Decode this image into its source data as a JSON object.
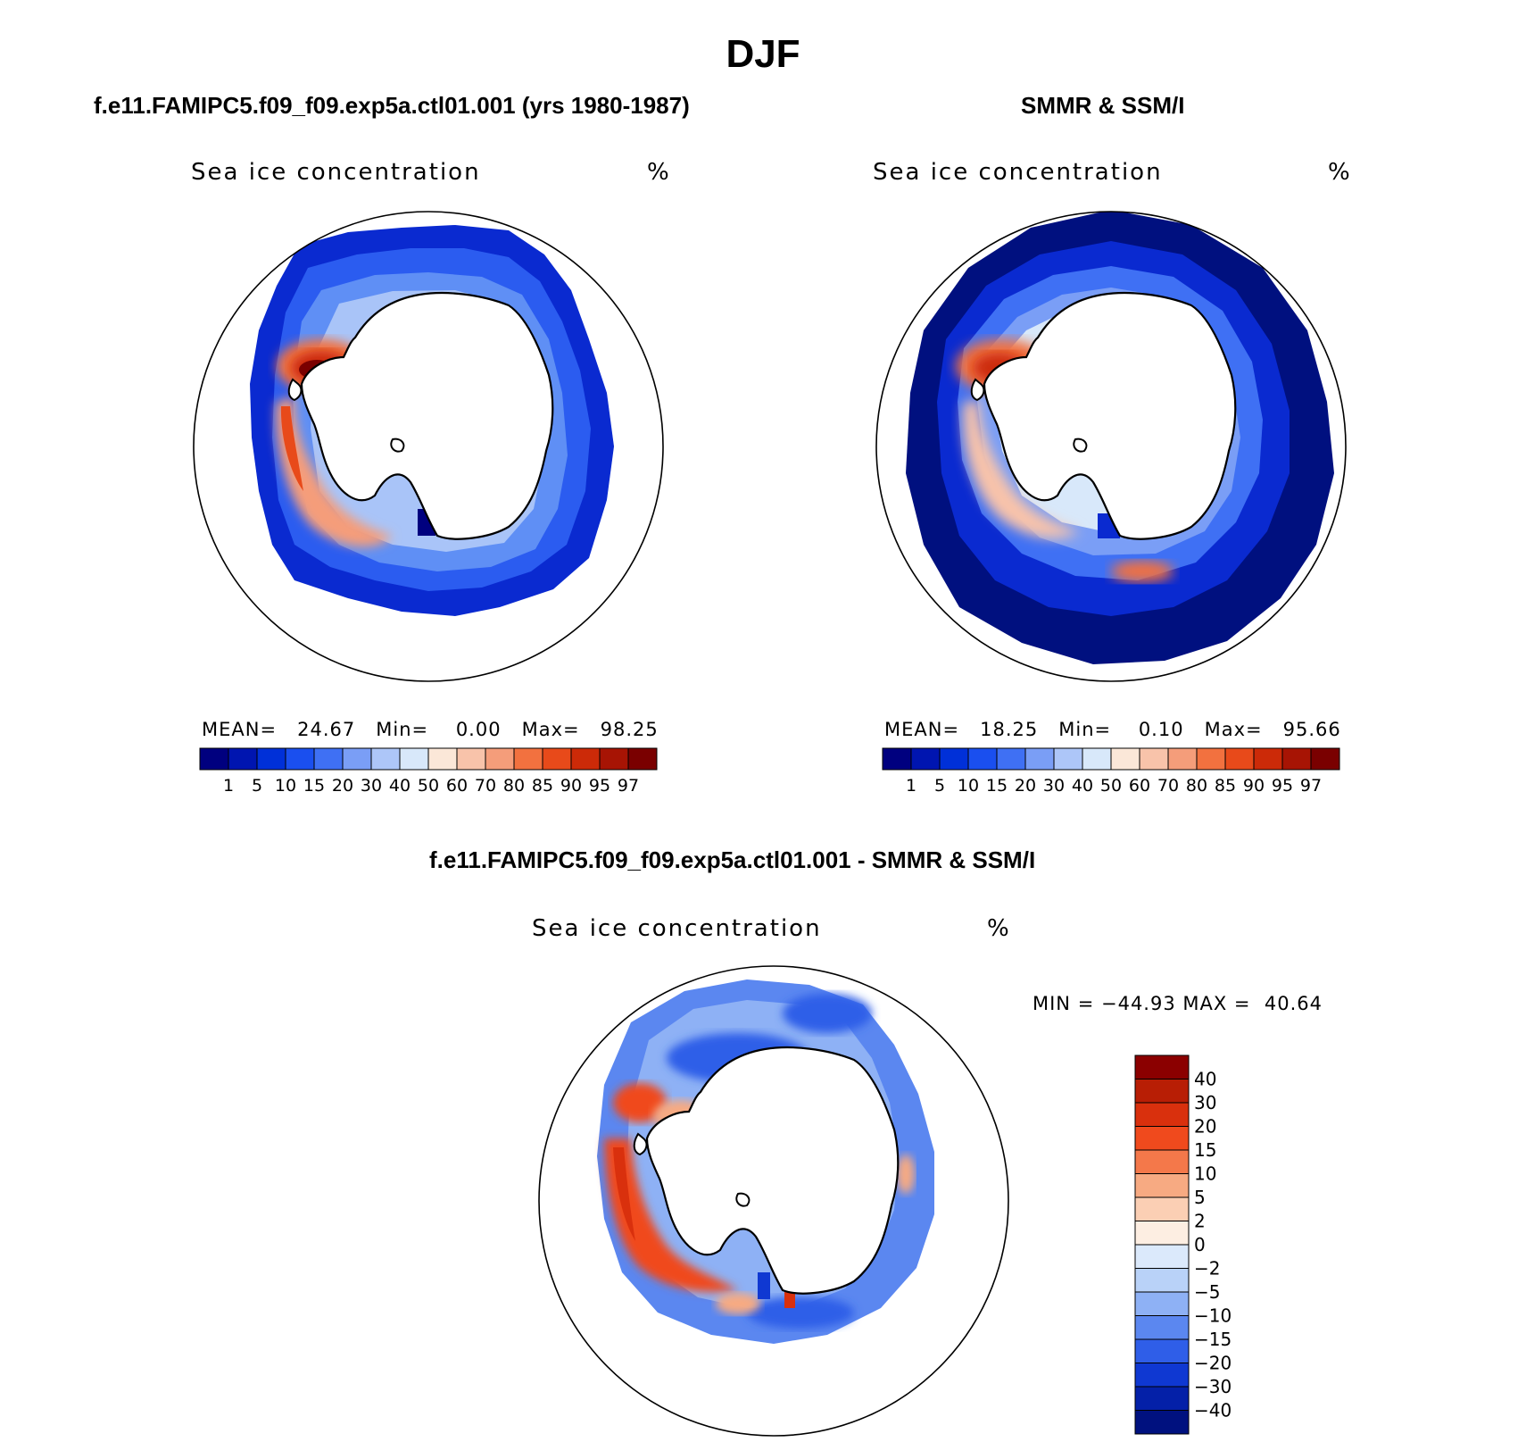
{
  "main_title": "DJF",
  "panels": {
    "model": {
      "title": "f.e11.FAMIPC5.f09_f09.exp5a.ctl01.001 (yrs 1980-1987)",
      "variable": "Sea ice concentration",
      "units": "%",
      "mean_label": "MEAN=",
      "mean": "24.67",
      "min_label": "Min=",
      "min": "0.00",
      "max_label": "Max=",
      "max": "98.25"
    },
    "obs": {
      "title": "SMMR & SSM/I",
      "variable": "Sea ice concentration",
      "units": "%",
      "mean_label": "MEAN=",
      "mean": "18.25",
      "min_label": "Min=",
      "min": "0.10",
      "max_label": "Max=",
      "max": "95.66"
    },
    "diff": {
      "title": "f.e11.FAMIPC5.f09_f09.exp5a.ctl01.001 - SMMR & SSM/I",
      "variable": "Sea ice concentration",
      "units": "%",
      "min_label": "MIN =",
      "min": "−44.93",
      "max_label": "MAX =",
      "max": "40.64"
    }
  },
  "colorbars": {
    "absolute": {
      "levels": [
        "1",
        "5",
        "10",
        "15",
        "20",
        "30",
        "40",
        "50",
        "60",
        "70",
        "80",
        "85",
        "90",
        "95",
        "97"
      ],
      "colors": [
        "#00007f",
        "#0015b0",
        "#0030d8",
        "#1a4fef",
        "#3f70f4",
        "#7a9ef6",
        "#adc6f8",
        "#d8e8fa",
        "#fbe7d8",
        "#f8c3aa",
        "#f59d7a",
        "#f2713f",
        "#e84a1a",
        "#cc2a08",
        "#a71404",
        "#7a0000"
      ]
    },
    "difference": {
      "levels": [
        "40",
        "30",
        "20",
        "15",
        "10",
        "5",
        "2",
        "0",
        "−2",
        "−5",
        "−10",
        "−15",
        "−20",
        "−30",
        "−40"
      ],
      "colors": [
        "#8b0000",
        "#b81e05",
        "#d9300d",
        "#f04a1d",
        "#f4784a",
        "#f7aa82",
        "#fbcfb4",
        "#fdeee2",
        "#dbe9fb",
        "#b9d2f8",
        "#8eb1f5",
        "#5b87f0",
        "#2f5ee8",
        "#0f38d2",
        "#0420a8",
        "#00117f"
      ]
    }
  }
}
